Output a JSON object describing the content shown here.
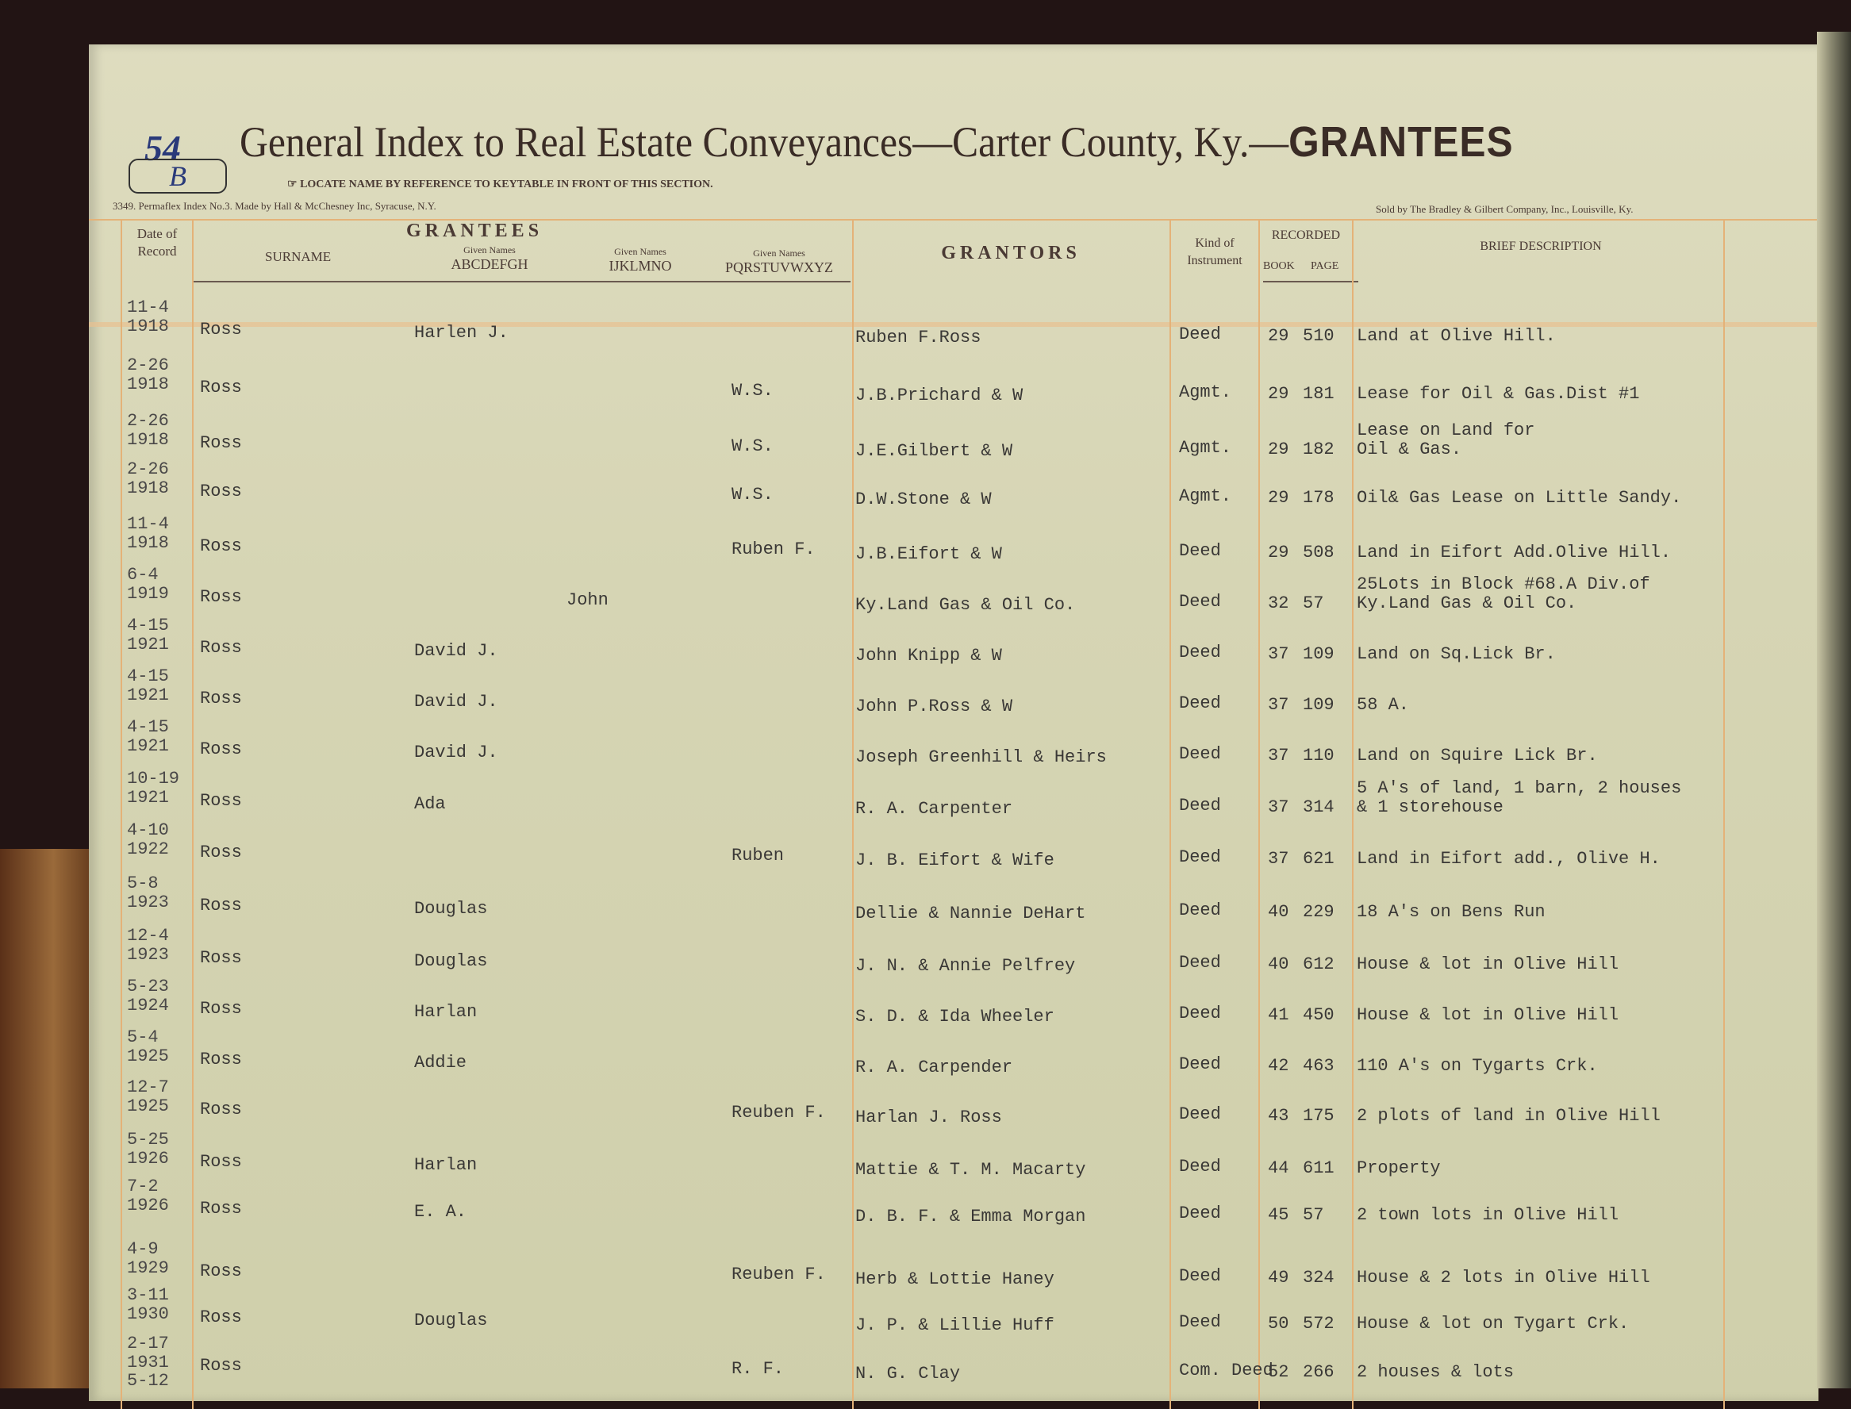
{
  "header": {
    "page_number": "54",
    "page_letter": "B",
    "title": "General Index to Real Estate Conveyances—Carter County, Ky.—",
    "title_bold": "GRANTEES",
    "locate_note": "LOCATE NAME BY REFERENCE TO KEYTABLE IN FRONT OF THIS SECTION.",
    "maker_note": "3349. Permaflex Index No.3. Made by Hall & McChesney Inc, Syracuse, N.Y.",
    "seller_note": "Sold by The Bradley & Gilbert Company, Inc., Louisville, Ky."
  },
  "columns": {
    "date": "Date of Record",
    "grantees": "GRANTEES",
    "surname": "SURNAME",
    "given_label": "Given Names",
    "given_ah": "ABCDEFGH",
    "given_io": "IJKLMNO",
    "given_pz": "PQRSTUVWXYZ",
    "grantors": "GRANTORS",
    "kind": "Kind of Instrument",
    "recorded": "RECORDED",
    "book": "BOOK",
    "page": "PAGE",
    "description": "BRIEF DESCRIPTION"
  },
  "rows": [
    {
      "date": "11-4",
      "year": "1918",
      "surname": "Ross",
      "given": "Harlen J.",
      "grantor": "Ruben F.Ross",
      "kind": "Deed",
      "book": "29",
      "page": "510",
      "desc": [
        "Land at Olive Hill."
      ]
    },
    {
      "date": "2-26",
      "year": "1918",
      "surname": "Ross",
      "given": "W.S.",
      "grantor": "J.B.Prichard & W",
      "kind": "Agmt.",
      "book": "29",
      "page": "181",
      "desc": [
        "Lease for Oil & Gas.Dist #1"
      ]
    },
    {
      "date": "2-26",
      "year": "1918",
      "surname": "Ross",
      "given": "W.S.",
      "grantor": "J.E.Gilbert & W",
      "kind": "Agmt.",
      "book": "29",
      "page": "182",
      "desc": [
        "Lease on Land for",
        " Oil & Gas."
      ]
    },
    {
      "date": "2-26",
      "year": "1918",
      "surname": "Ross",
      "given": "W.S.",
      "grantor": "D.W.Stone & W",
      "kind": "Agmt.",
      "book": "29",
      "page": "178",
      "desc": [
        "Oil& Gas Lease on Little Sandy."
      ]
    },
    {
      "date": "11-4",
      "year": "1918",
      "surname": "Ross",
      "given": "Ruben F.",
      "grantor": "J.B.Eifort & W",
      "kind": "Deed",
      "book": "29",
      "page": "508",
      "desc": [
        "Land in Eifort Add.Olive Hill."
      ]
    },
    {
      "date": "6-4",
      "year": "1919",
      "surname": "Ross",
      "given": "John",
      "grantor": "Ky.Land Gas & Oil Co.",
      "kind": "Deed",
      "book": "32",
      "page": "57",
      "desc": [
        "25Lots in Block #68.A Div.of",
        " Ky.Land Gas & Oil Co."
      ]
    },
    {
      "date": "4-15",
      "year": "1921",
      "surname": "Ross",
      "given": "David J.",
      "grantor": "John Knipp & W",
      "kind": "Deed",
      "book": "37",
      "page": "109",
      "desc": [
        "Land on Sq.Lick Br."
      ]
    },
    {
      "date": "4-15",
      "year": "1921",
      "surname": "Ross",
      "given": "David J.",
      "grantor": "John P.Ross & W",
      "kind": "Deed",
      "book": "37",
      "page": "109",
      "desc": [
        "58 A."
      ]
    },
    {
      "date": "4-15",
      "year": "1921",
      "surname": "Ross",
      "given": "David J.",
      "grantor": "Joseph Greenhill & Heirs",
      "kind": "Deed",
      "book": "37",
      "page": "110",
      "desc": [
        "Land on Squire Lick Br."
      ]
    },
    {
      "date": "10-19",
      "year": "1921",
      "surname": "Ross",
      "given": "Ada",
      "grantor": "R. A. Carpenter",
      "kind": "Deed",
      "book": "37",
      "page": "314",
      "desc": [
        "5 A's of land, 1 barn, 2 houses",
        "& 1 storehouse"
      ]
    },
    {
      "date": "4-10",
      "year": "1922",
      "surname": "Ross",
      "given": "Ruben",
      "grantor": "J. B. Eifort & Wife",
      "kind": "Deed",
      "book": "37",
      "page": "621",
      "desc": [
        "Land in Eifort add., Olive H."
      ]
    },
    {
      "date": "5-8",
      "year": "1923",
      "surname": "Ross",
      "given": "Douglas",
      "grantor": "Dellie & Nannie DeHart",
      "kind": "Deed",
      "book": "40",
      "page": "229",
      "desc": [
        "18 A's on Bens Run"
      ]
    },
    {
      "date": "12-4",
      "year": "1923",
      "surname": "Ross",
      "given": "Douglas",
      "grantor": "J. N. & Annie Pelfrey",
      "kind": "Deed",
      "book": "40",
      "page": "612",
      "desc": [
        "House & lot in Olive Hill"
      ]
    },
    {
      "date": "5-23",
      "year": "1924",
      "surname": "Ross",
      "given": "Harlan",
      "grantor": "S. D. & Ida Wheeler",
      "kind": "Deed",
      "book": "41",
      "page": "450",
      "desc": [
        "House & lot in Olive Hill"
      ]
    },
    {
      "date": "5-4",
      "year": "1925",
      "surname": "Ross",
      "given": "Addie",
      "grantor": "R. A. Carpender",
      "kind": "Deed",
      "book": "42",
      "page": "463",
      "desc": [
        "110 A's on Tygarts Crk."
      ]
    },
    {
      "date": "12-7",
      "year": "1925",
      "surname": "Ross",
      "given": "Reuben F.",
      "grantor": "Harlan J. Ross",
      "kind": "Deed",
      "book": "43",
      "page": "175",
      "desc": [
        "2 plots of land in Olive Hill"
      ]
    },
    {
      "date": "5-25",
      "year": "1926",
      "surname": "Ross",
      "given": "Harlan",
      "grantor": "Mattie & T. M. Macarty",
      "kind": "Deed",
      "book": "44",
      "page": "611",
      "desc": [
        "Property"
      ]
    },
    {
      "date": "7-2",
      "year": "1926",
      "surname": "Ross",
      "given": "E. A.",
      "grantor": "D. B. F. & Emma Morgan",
      "kind": "Deed",
      "book": "45",
      "page": "57",
      "desc": [
        "2 town lots in Olive Hill"
      ]
    },
    {
      "date": "4-9",
      "year": "1929",
      "surname": "Ross",
      "given": "Reuben F.",
      "grantor": "Herb & Lottie Haney",
      "kind": "Deed",
      "book": "49",
      "page": "324",
      "desc": [
        "House & 2 lots in Olive Hill"
      ]
    },
    {
      "date": "3-11",
      "year": "1930",
      "surname": "Ross",
      "given": "Douglas",
      "grantor": "J. P. & Lillie Huff",
      "kind": "Deed",
      "book": "50",
      "page": "572",
      "desc": [
        "House & lot on Tygart Crk."
      ]
    },
    {
      "date": "2-17",
      "year": "1931",
      "surname": "Ross",
      "given": "R. F.",
      "grantor": "N. G. Clay",
      "kind": "Com. Deed",
      "book": "52",
      "page": "266",
      "desc": [
        "2 houses & lots"
      ]
    },
    {
      "date": "5-12",
      "year": "",
      "surname": "",
      "given": "",
      "grantor": "",
      "kind": "",
      "book": "",
      "page": "",
      "desc": []
    }
  ]
}
